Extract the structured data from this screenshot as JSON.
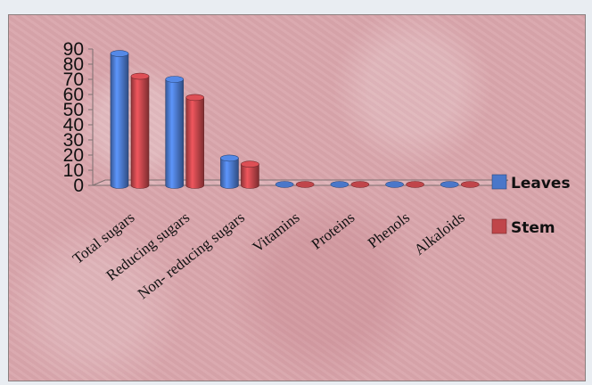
{
  "chart_data": {
    "type": "bar",
    "variant": "3d-clustered-cylinder",
    "categories": [
      "Total sugars",
      "Reducing sugars",
      "Non- reducing sugars",
      "Vitamins",
      "Proteins",
      "Phenols",
      "Alkaloids"
    ],
    "series": [
      {
        "name": "Leaves",
        "values": [
          87,
          70,
          18,
          0.5,
          0.5,
          0.5,
          0.5
        ],
        "color": "#4a77c9"
      },
      {
        "name": "Stem",
        "values": [
          72,
          58,
          14,
          0.5,
          0.5,
          0.5,
          0.5
        ],
        "color": "#c0454a"
      }
    ],
    "yticks": [
      0,
      10,
      20,
      30,
      40,
      50,
      60,
      70,
      80,
      90
    ],
    "ylim": [
      0,
      90
    ],
    "grid": false,
    "legend_position": "right",
    "title": "",
    "xlabel": "",
    "ylabel": ""
  }
}
